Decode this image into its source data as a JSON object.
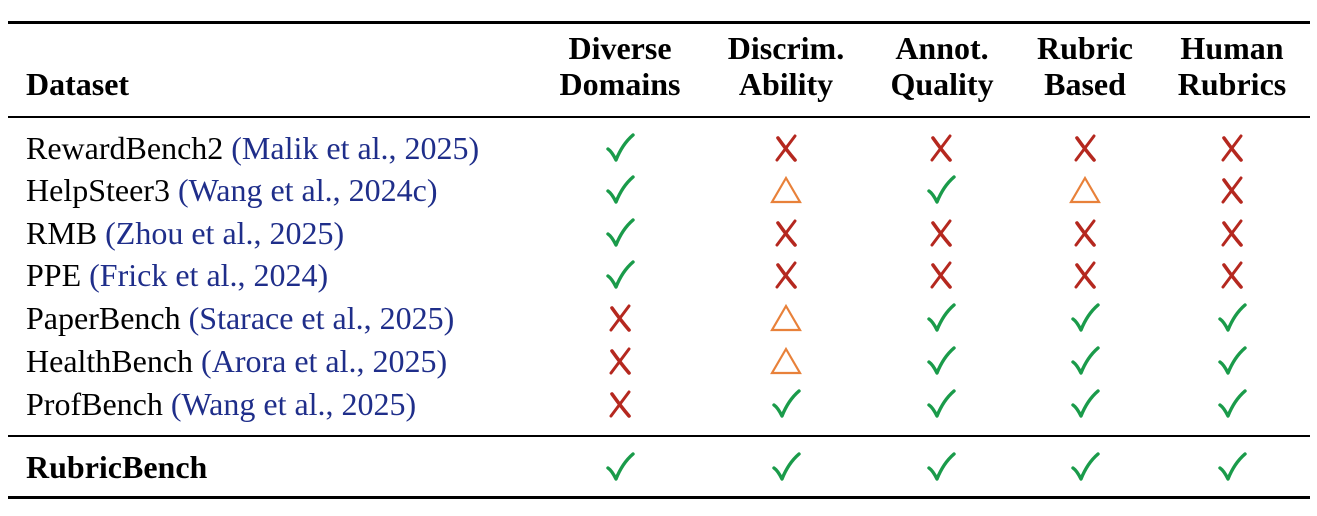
{
  "table": {
    "columns": [
      {
        "line1": "Dataset",
        "line2": ""
      },
      {
        "line1": "Diverse",
        "line2": "Domains"
      },
      {
        "line1": "Discrim.",
        "line2": "Ability"
      },
      {
        "line1": "Annot.",
        "line2": "Quality"
      },
      {
        "line1": "Rubric",
        "line2": "Based"
      },
      {
        "line1": "Human",
        "line2": "Rubrics"
      }
    ],
    "rows": [
      {
        "name": "RewardBench2",
        "cite": "(Malik et al., 2025)",
        "marks": [
          "check",
          "cross",
          "cross",
          "cross",
          "cross"
        ]
      },
      {
        "name": "HelpSteer3",
        "cite": "(Wang et al., 2024c)",
        "marks": [
          "check",
          "triangle",
          "check",
          "triangle",
          "cross"
        ]
      },
      {
        "name": "RMB",
        "cite": "(Zhou et al., 2025)",
        "marks": [
          "check",
          "cross",
          "cross",
          "cross",
          "cross"
        ]
      },
      {
        "name": "PPE",
        "cite": "(Frick et al., 2024)",
        "marks": [
          "check",
          "cross",
          "cross",
          "cross",
          "cross"
        ]
      },
      {
        "name": "PaperBench",
        "cite": "(Starace et al., 2025)",
        "marks": [
          "cross",
          "triangle",
          "check",
          "check",
          "check"
        ]
      },
      {
        "name": "HealthBench",
        "cite": "(Arora et al., 2025)",
        "marks": [
          "cross",
          "triangle",
          "check",
          "check",
          "check"
        ]
      },
      {
        "name": "ProfBench",
        "cite": "(Wang et al., 2025)",
        "marks": [
          "cross",
          "check",
          "check",
          "check",
          "check"
        ]
      }
    ],
    "final_row": {
      "name": "RubricBench",
      "marks": [
        "check",
        "check",
        "check",
        "check",
        "check"
      ]
    }
  },
  "colors": {
    "check": "#1a9b4a",
    "cross": "#b5281f",
    "triangle": "#e8813a",
    "citation": "#1f2e8a"
  }
}
